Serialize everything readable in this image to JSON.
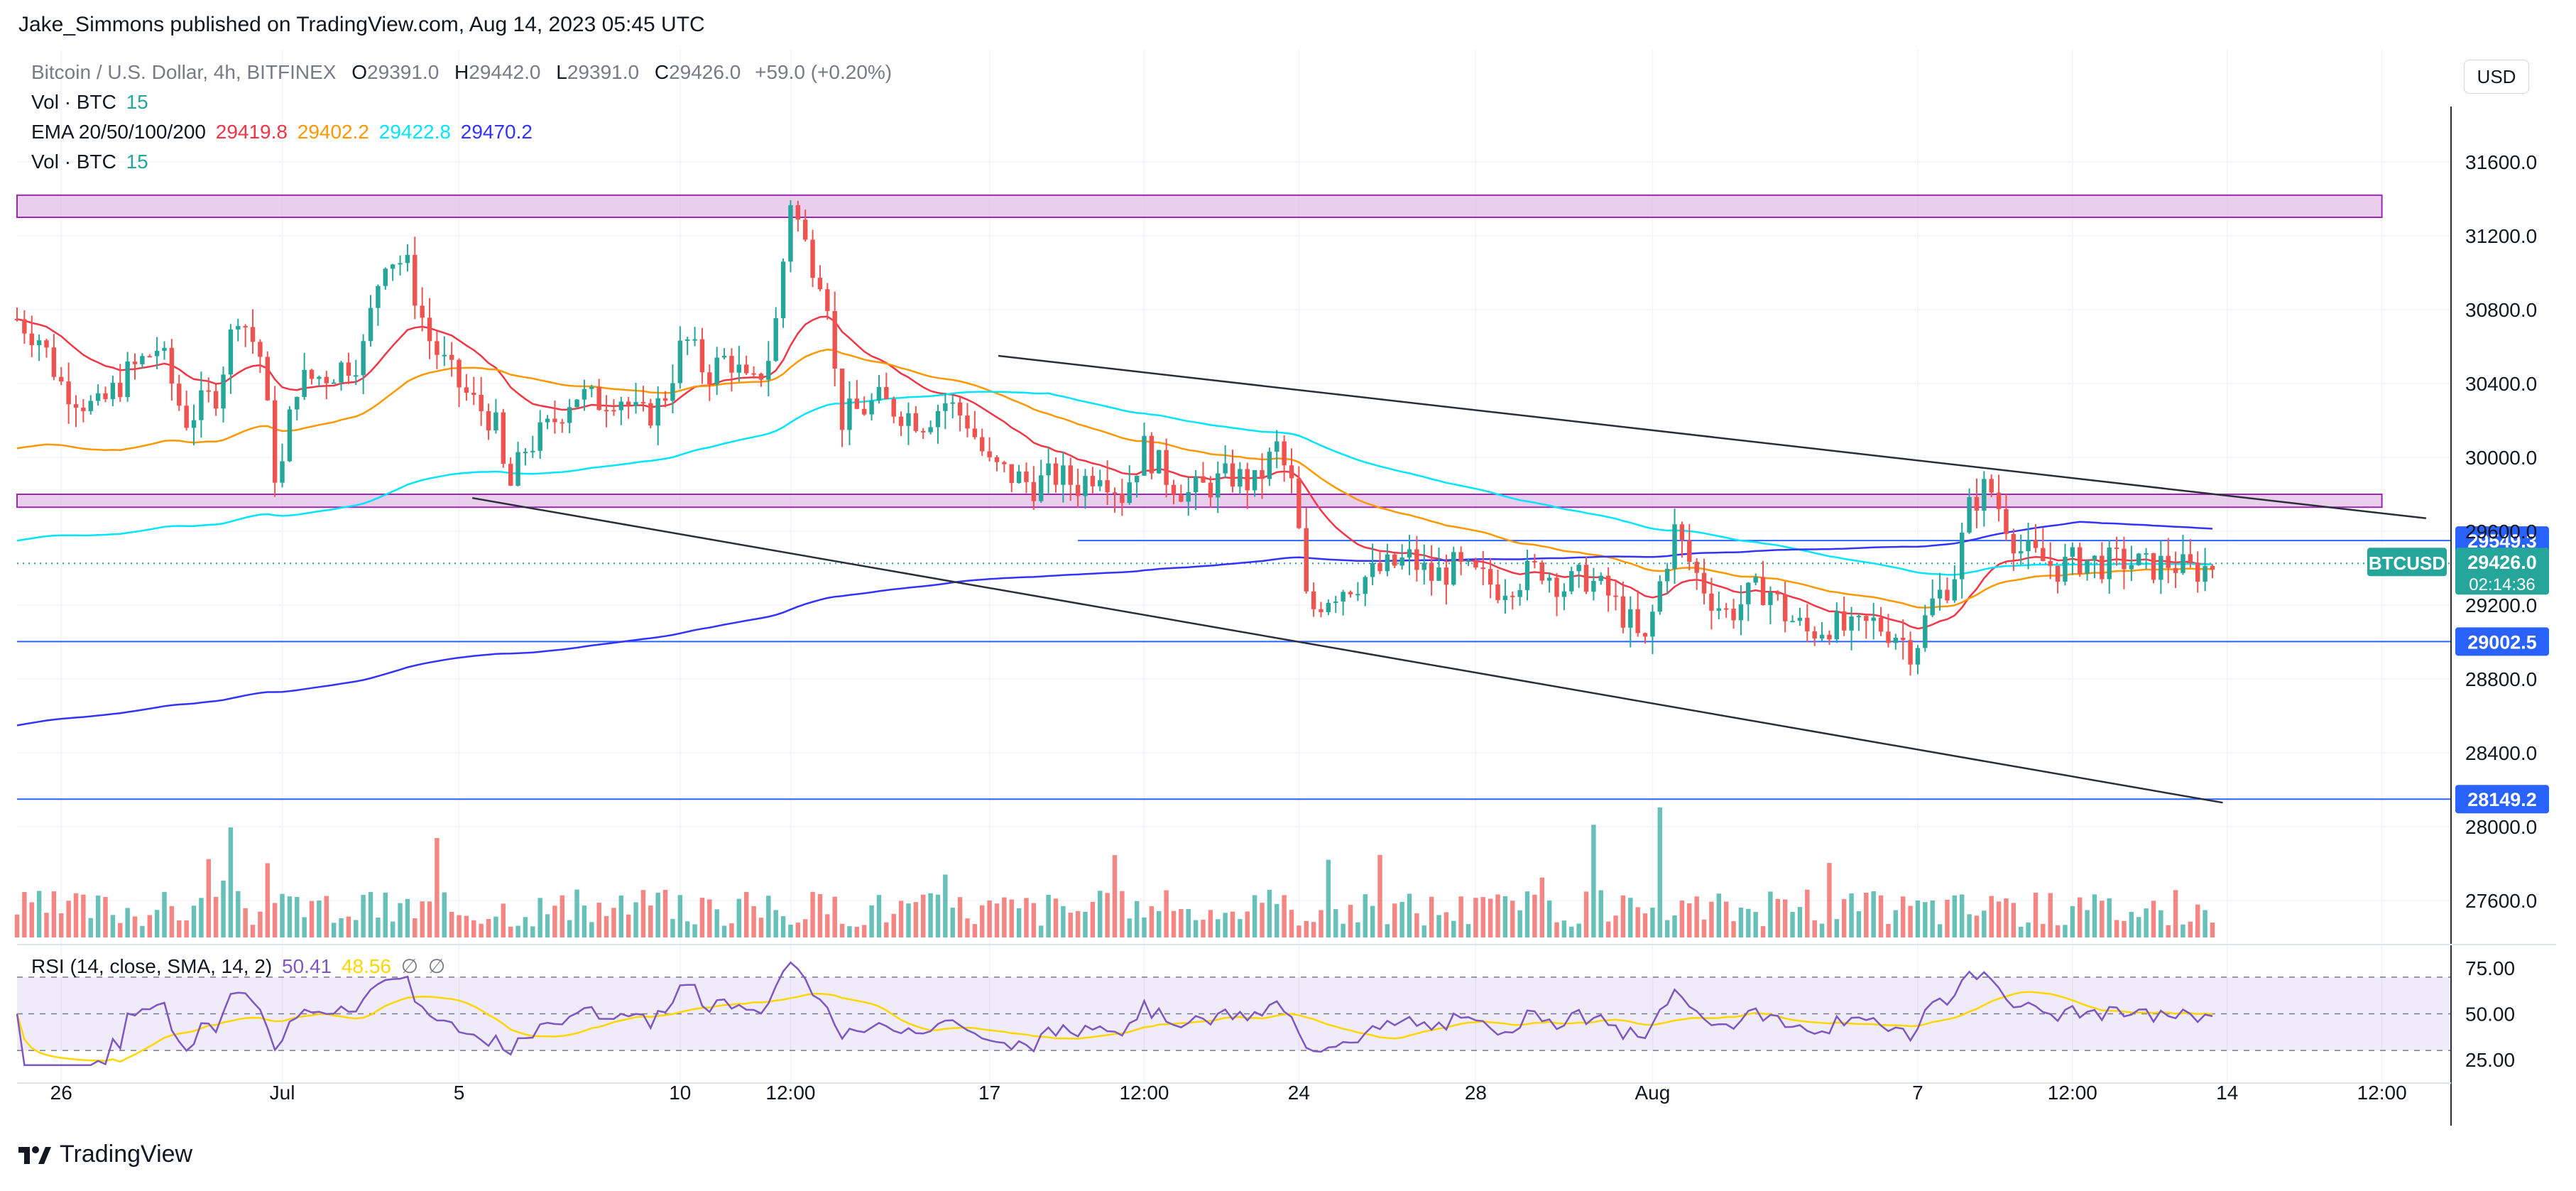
{
  "header": {
    "publisher": "Jake_Simmons published on TradingView.com, Aug 14, 2023 05:45 UTC",
    "currency_button": "USD"
  },
  "legend": {
    "symbol_line": "Bitcoin / U.S. Dollar, 4h, BITFINEX",
    "ohlc": {
      "o_label": "O",
      "o_value": "29391.0",
      "h_label": "H",
      "h_value": "29442.0",
      "l_label": "L",
      "l_value": "29391.0",
      "c_label": "C",
      "c_value": "29426.0",
      "change": "+59.0 (+0.20%)"
    },
    "vol_line_1": {
      "label": "Vol · BTC",
      "value": "15"
    },
    "ema_line": {
      "label": "EMA 20/50/100/200",
      "v20": "29419.8",
      "v50": "29402.2",
      "v100": "29422.8",
      "v200": "29470.2"
    },
    "vol_line_2": {
      "label": "Vol · BTC",
      "value": "15"
    },
    "rsi_line": {
      "label": "RSI (14, close, SMA, 14, 2)",
      "value": "50.41",
      "sma": "48.56",
      "ext1": "∅",
      "ext2": "∅"
    }
  },
  "footer": {
    "brand": "TradingView"
  },
  "colors": {
    "up": "#26a69a",
    "down": "#ef5350",
    "ema20": "#f23645",
    "ema50": "#ff9800",
    "ema100": "#00e5ff",
    "ema200": "#3333ff",
    "zone": "#e1bee7",
    "zone_border": "#9c27b0",
    "hline": "#2962ff",
    "trendline": "#2a2e39",
    "rsi": "#7e57c2",
    "rsi_sma": "#ffd600"
  },
  "chart_data": {
    "type": "candlestick",
    "symbol": "BTCUSD",
    "timeframe": "4h",
    "exchange": "BITFINEX",
    "ylim": [
      27400,
      31900
    ],
    "y_ticks": [
      "31600.0",
      "31200.0",
      "30800.0",
      "30400.0",
      "30000.0",
      "29600.0",
      "29200.0",
      "28800.0",
      "28400.0",
      "28000.0",
      "27600.0"
    ],
    "x_ticks": [
      {
        "label": "26",
        "day": 26
      },
      {
        "label": "Jul",
        "day": 31
      },
      {
        "label": "5",
        "day": 35
      },
      {
        "label": "10",
        "day": 40
      },
      {
        "label": "12:00",
        "day": 42.5
      },
      {
        "label": "17",
        "day": 47
      },
      {
        "label": "12:00",
        "day": 50.5
      },
      {
        "label": "24",
        "day": 54
      },
      {
        "label": "28",
        "day": 58
      },
      {
        "label": "Aug",
        "day": 62
      },
      {
        "label": "7",
        "day": 68
      },
      {
        "label": "12:00",
        "day": 71.5
      },
      {
        "label": "14",
        "day": 75
      },
      {
        "label": "12:00",
        "day": 78.5
      }
    ],
    "day_axis": {
      "start": 25,
      "end": 80
    },
    "last_price": {
      "label": "BTCUSD",
      "value": "29426.0",
      "countdown": "02:14:36",
      "price": 29426
    },
    "zones": [
      {
        "from": 31300,
        "to": 31420
      },
      {
        "from": 29730,
        "to": 29800
      }
    ],
    "horizontal_lines": [
      {
        "price": 29549.3,
        "label": "29549.3",
        "start_day": 49
      },
      {
        "price": 29002.5,
        "label": "29002.5",
        "start_day": 25
      },
      {
        "price": 28149.2,
        "label": "28149.2",
        "start_day": 25
      }
    ],
    "trendlines": [
      {
        "p1": [
          47.2,
          30550
        ],
        "p2": [
          79.5,
          29670
        ]
      },
      {
        "p1": [
          35.3,
          29780
        ],
        "p2": [
          74.9,
          28130
        ]
      }
    ],
    "candles_close_path": [
      [
        25.0,
        30750
      ],
      [
        25.5,
        30650
      ],
      [
        26.0,
        30400
      ],
      [
        26.8,
        30250
      ],
      [
        27.5,
        30450
      ],
      [
        28.2,
        30600
      ],
      [
        28.8,
        30200
      ],
      [
        29.5,
        30350
      ],
      [
        30.0,
        30800
      ],
      [
        30.5,
        30550
      ],
      [
        30.9,
        29800
      ],
      [
        31.3,
        30400
      ],
      [
        32.0,
        30450
      ],
      [
        32.8,
        30550
      ],
      [
        33.3,
        31100
      ],
      [
        33.8,
        31050
      ],
      [
        34.3,
        30650
      ],
      [
        34.8,
        30450
      ],
      [
        35.3,
        30300
      ],
      [
        35.8,
        30200
      ],
      [
        36.1,
        29800
      ],
      [
        36.5,
        30050
      ],
      [
        37.0,
        30150
      ],
      [
        37.6,
        30350
      ],
      [
        38.1,
        30300
      ],
      [
        38.6,
        30350
      ],
      [
        39.1,
        30200
      ],
      [
        39.6,
        30300
      ],
      [
        40.1,
        30650
      ],
      [
        40.6,
        30450
      ],
      [
        41.1,
        30550
      ],
      [
        41.6,
        30350
      ],
      [
        42.1,
        30600
      ],
      [
        42.5,
        31400
      ],
      [
        42.9,
        31100
      ],
      [
        43.3,
        30950
      ],
      [
        43.6,
        30200
      ],
      [
        44.0,
        30250
      ],
      [
        44.5,
        30300
      ],
      [
        45.0,
        30250
      ],
      [
        45.5,
        30200
      ],
      [
        46.0,
        30300
      ],
      [
        46.5,
        30200
      ],
      [
        47.0,
        29950
      ],
      [
        47.5,
        29900
      ],
      [
        48.0,
        29850
      ],
      [
        48.5,
        29900
      ],
      [
        49.0,
        29850
      ],
      [
        49.5,
        29950
      ],
      [
        50.0,
        29800
      ],
      [
        50.5,
        30050
      ],
      [
        51.0,
        29900
      ],
      [
        51.5,
        29800
      ],
      [
        52.0,
        29850
      ],
      [
        52.5,
        29900
      ],
      [
        53.0,
        29850
      ],
      [
        53.5,
        30050
      ],
      [
        53.9,
        29800
      ],
      [
        54.2,
        29150
      ],
      [
        54.6,
        29250
      ],
      [
        55.0,
        29300
      ],
      [
        55.5,
        29350
      ],
      [
        56.0,
        29400
      ],
      [
        56.5,
        29450
      ],
      [
        57.0,
        29350
      ],
      [
        57.5,
        29400
      ],
      [
        58.0,
        29350
      ],
      [
        58.5,
        29300
      ],
      [
        59.0,
        29350
      ],
      [
        59.5,
        29400
      ],
      [
        60.0,
        29300
      ],
      [
        60.5,
        29350
      ],
      [
        61.0,
        29250
      ],
      [
        61.5,
        29100
      ],
      [
        61.8,
        28950
      ],
      [
        62.2,
        29350
      ],
      [
        62.5,
        29600
      ],
      [
        62.9,
        29400
      ],
      [
        63.3,
        29250
      ],
      [
        63.7,
        29150
      ],
      [
        64.2,
        29250
      ],
      [
        64.6,
        29300
      ],
      [
        65.0,
        29150
      ],
      [
        65.5,
        29050
      ],
      [
        66.0,
        29100
      ],
      [
        66.5,
        29050
      ],
      [
        67.0,
        29100
      ],
      [
        67.5,
        29050
      ],
      [
        67.9,
        28950
      ],
      [
        68.3,
        29200
      ],
      [
        68.8,
        29350
      ],
      [
        69.2,
        29750
      ],
      [
        69.6,
        29850
      ],
      [
        70.0,
        29650
      ],
      [
        70.3,
        29500
      ],
      [
        70.7,
        29450
      ],
      [
        71.2,
        29400
      ],
      [
        71.7,
        29450
      ],
      [
        72.2,
        29420
      ],
      [
        72.7,
        29440
      ],
      [
        73.2,
        29400
      ],
      [
        73.7,
        29430
      ],
      [
        74.2,
        29380
      ],
      [
        74.8,
        29426
      ]
    ],
    "rsi": {
      "upper": 70,
      "middle": 50,
      "lower": 30,
      "y_ticks": [
        "75.00",
        "50.00",
        "25.00"
      ],
      "last": 50.41,
      "sma_last": 48.56
    }
  }
}
